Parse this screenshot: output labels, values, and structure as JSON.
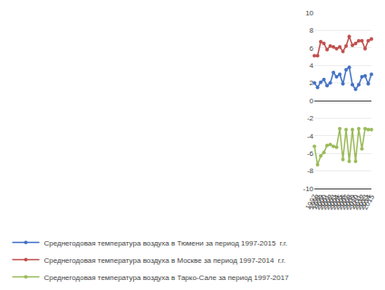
{
  "chart_data": {
    "type": "line",
    "x": [
      1997,
      1998,
      1999,
      2000,
      2001,
      2002,
      2003,
      2004,
      2005,
      2006,
      2007,
      2008,
      2009,
      2010,
      2011,
      2012,
      2013,
      2014,
      2015
    ],
    "series": [
      {
        "name": "Среднегодовая температура воздуха в Тюмени за период 1997-2015  г.г.",
        "color": "#4472c4",
        "marker": "circle",
        "line_style": "solid",
        "values": [
          2.0,
          1.5,
          2.1,
          2.4,
          1.7,
          2.0,
          3.2,
          2.7,
          3.0,
          1.9,
          3.5,
          3.8,
          1.8,
          1.3,
          1.8,
          2.7,
          2.8,
          1.9,
          3.0
        ]
      },
      {
        "name": "Среднегодовая температура воздуха в Москве за период 1997-2014  г.г.",
        "color": "#c0504d",
        "marker": "circle",
        "line_style": "solid",
        "values": [
          5.1,
          5.1,
          6.7,
          6.5,
          5.8,
          6.2,
          6.1,
          5.9,
          6.1,
          5.6,
          6.2,
          7.3,
          6.3,
          6.5,
          6.8,
          6.8,
          5.9,
          6.8,
          7.0
        ]
      },
      {
        "name": "Среднегодовая температура воздуха в Тарко-Сале за период 1997-2017",
        "color": "#9bbb59",
        "marker": "circle",
        "line_style": "solid",
        "values": [
          -5.2,
          -7.3,
          -6.3,
          -5.9,
          -5.1,
          -5.0,
          -5.2,
          -5.3,
          -3.2,
          -6.7,
          -3.3,
          -6.9,
          -3.3,
          -6.9,
          -3.2,
          -5.5,
          -3.2,
          -3.3,
          -3.3
        ]
      }
    ],
    "xlim": [
      1997,
      2015
    ],
    "xticks": [
      1997,
      1998,
      1999,
      2000,
      2001,
      2002,
      2003,
      2004,
      2005,
      2006,
      2007,
      2008,
      2009,
      2010,
      2011,
      2012,
      2013,
      2014,
      2015
    ],
    "ylim": [
      -10,
      10
    ],
    "yticks": [
      -10,
      -8,
      -6,
      -4,
      -2,
      0,
      2,
      4,
      6,
      8,
      10
    ],
    "grid": "y",
    "legend": "bottom"
  }
}
